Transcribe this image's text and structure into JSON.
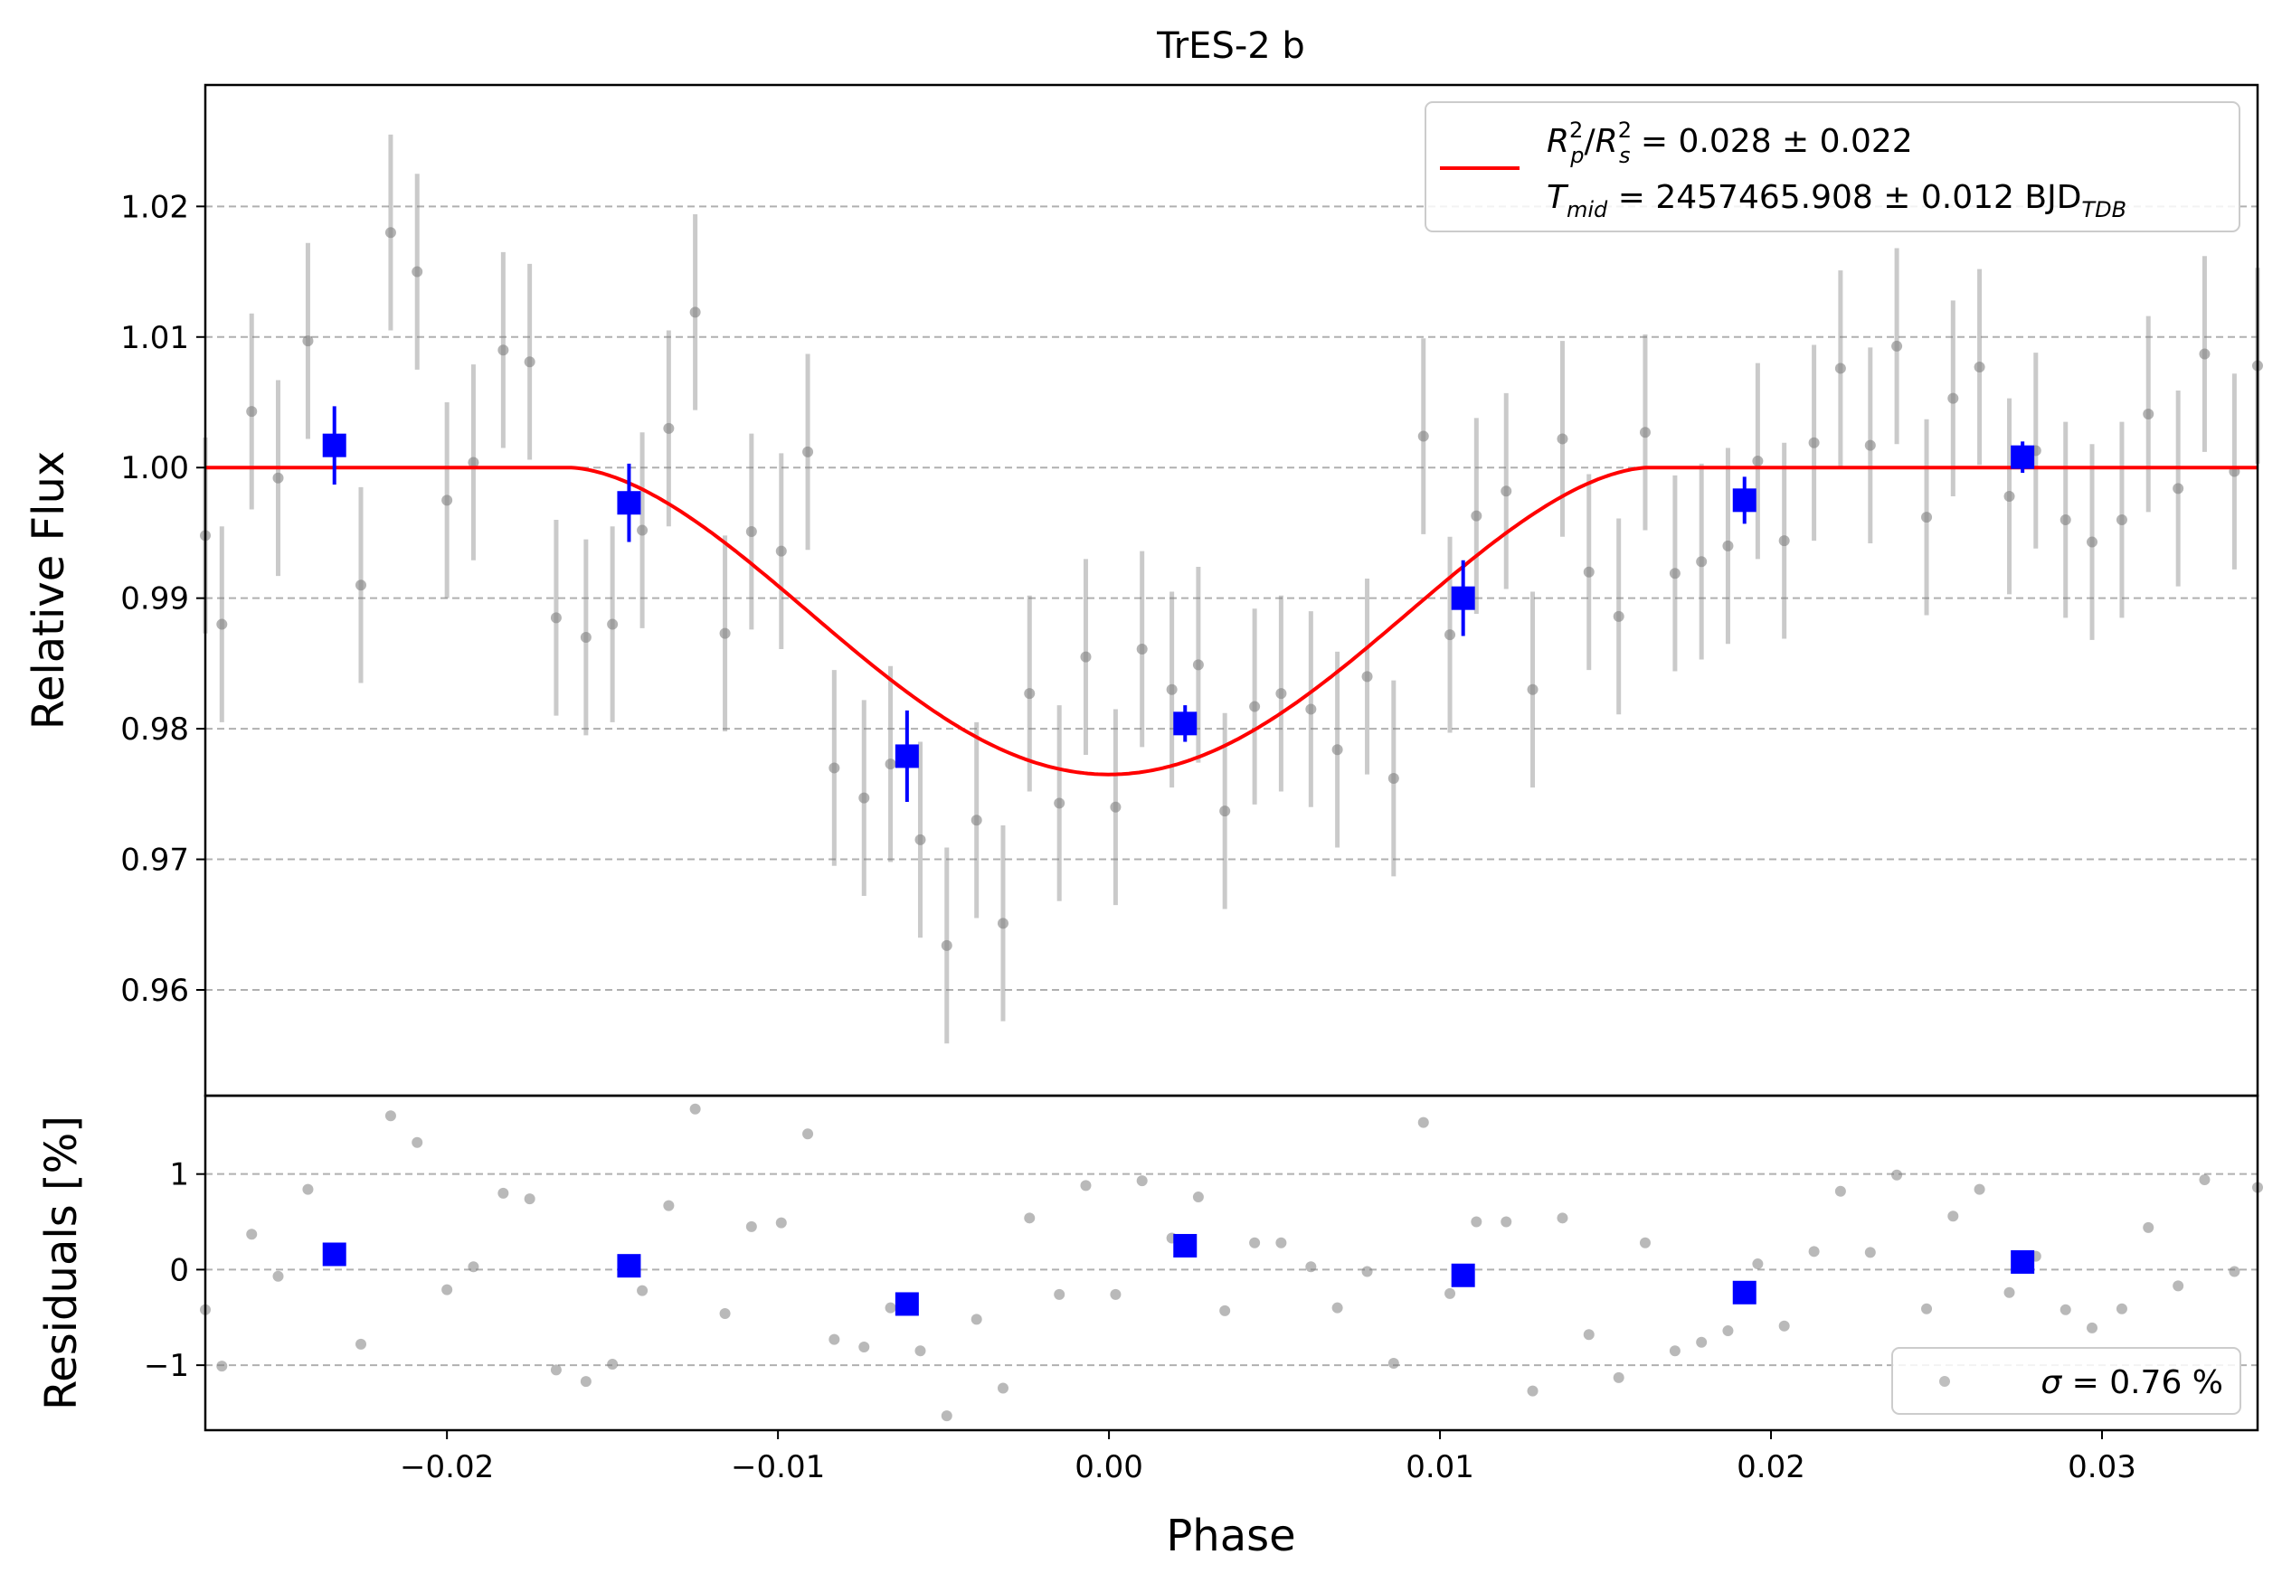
{
  "chart_data": [
    {
      "type": "scatter",
      "title": "TrES-2 b",
      "xlabel": "",
      "ylabel": "Relative Flux",
      "xlim": [
        -0.0273,
        0.0347
      ],
      "ylim": [
        0.9519,
        1.0293
      ],
      "grid": "y-dashed",
      "yticks": [
        0.96,
        0.97,
        0.98,
        0.99,
        1.0,
        1.01,
        1.02
      ],
      "ytick_labels": [
        "0.96",
        "0.97",
        "0.98",
        "0.99",
        "1.00",
        "1.01",
        "1.02"
      ],
      "legend": {
        "placement": "top-right",
        "line1": {
          "sym1": "R",
          "sub1": "p",
          "sup1": "2",
          "slash": "/",
          "sym2": "R",
          "sub2": "s",
          "sup2": "2",
          "value": " = 0.028 ± 0.022"
        },
        "line2": {
          "sym": "T",
          "sub": "mid",
          "value": " = 2457465.908 ± 0.012 BJD",
          "unitsub": "TDB"
        }
      },
      "model": {
        "color": "#ff0000",
        "baseline": 1.0,
        "depth": 0.0235,
        "contact_half_width": 0.0163,
        "x_range": [
          -0.0273,
          0.0347
        ]
      },
      "raw_points": {
        "color": "#808080",
        "x": [
          -0.0273,
          -0.0268,
          -0.0259,
          -0.0251,
          -0.0242,
          -0.0226,
          -0.0217,
          -0.0209,
          -0.02,
          -0.0192,
          -0.0183,
          -0.0175,
          -0.0167,
          -0.0158,
          -0.015,
          -0.0141,
          -0.0133,
          -0.0125,
          -0.0116,
          -0.0108,
          -0.0099,
          -0.0091,
          -0.0083,
          -0.0074,
          -0.0066,
          -0.0057,
          -0.0049,
          -0.004,
          -0.0032,
          -0.0024,
          -0.0015,
          -0.0007,
          0.0002,
          0.001,
          0.0019,
          0.0027,
          0.0035,
          0.0044,
          0.0052,
          0.0061,
          0.0069,
          0.0078,
          0.0086,
          0.0095,
          0.0103,
          0.0111,
          0.012,
          0.0128,
          0.0137,
          0.0145,
          0.0154,
          0.0162,
          0.0171,
          0.0179,
          0.0187,
          0.0196,
          0.0204,
          0.0213,
          0.0221,
          0.023,
          0.0238,
          0.0247,
          0.0255,
          0.0263,
          0.0272,
          0.028,
          0.0289,
          0.0297,
          0.0306,
          0.0314,
          0.0323,
          0.0331,
          0.034,
          0.0347
        ],
        "y": [
          0.9948,
          0.988,
          1.0043,
          0.9992,
          1.0097,
          0.991,
          1.018,
          1.015,
          0.9975,
          1.0004,
          1.009,
          1.0081,
          0.9885,
          0.987,
          0.988,
          0.9952,
          1.003,
          1.0119,
          0.9873,
          0.9951,
          0.9936,
          1.0012,
          0.977,
          0.9747,
          0.9773,
          0.9715,
          0.9634,
          0.973,
          0.9651,
          0.9827,
          0.9743,
          0.9855,
          0.974,
          0.9861,
          0.983,
          0.9849,
          0.9737,
          0.9817,
          0.9827,
          0.9815,
          0.9784,
          0.984,
          0.9762,
          1.0024,
          0.9872,
          0.9963,
          0.9982,
          0.983,
          1.0022,
          0.992,
          0.9886,
          1.0027,
          0.9919,
          0.9928,
          0.994,
          1.0005,
          0.9944,
          1.0019,
          1.0076,
          1.0017,
          1.0093,
          0.9962,
          1.0053,
          1.0077,
          0.9978,
          1.0013,
          0.996,
          0.9943,
          0.996,
          1.0041,
          0.9984,
          1.0087,
          0.9997,
          1.0078
        ],
        "yerr": 0.0075
      },
      "binned_points": {
        "color": "#0000ff",
        "x": [
          -0.0234,
          -0.0145,
          -0.0061,
          0.0023,
          0.0107,
          0.0192,
          0.0276
        ],
        "y": [
          1.0017,
          0.9973,
          0.9779,
          0.9804,
          0.99,
          0.9975,
          1.0008
        ],
        "yerr": [
          0.003,
          0.003,
          0.0035,
          0.0014,
          0.0029,
          0.0018,
          0.0012
        ]
      }
    },
    {
      "type": "scatter",
      "title": "",
      "xlabel": "Phase",
      "ylabel": "Residuals [%]",
      "xlim": [
        -0.0273,
        0.0347
      ],
      "ylim": [
        -1.68,
        1.82
      ],
      "grid": "y-dashed",
      "xticks": [
        -0.02,
        -0.01,
        0.0,
        0.01,
        0.02,
        0.03
      ],
      "xtick_labels": [
        "−0.02",
        "−0.01",
        "0.00",
        "0.01",
        "0.02",
        "0.03"
      ],
      "yticks": [
        -1,
        0,
        1
      ],
      "ytick_labels": [
        "−1",
        "0",
        "1"
      ],
      "legend": {
        "placement": "bottom-right",
        "sym": "σ",
        "value": " = 0.76 %"
      },
      "raw_points": {
        "color": "#808080",
        "x": [
          -0.0273,
          -0.0268,
          -0.0259,
          -0.0251,
          -0.0242,
          -0.0226,
          -0.0217,
          -0.0209,
          -0.02,
          -0.0192,
          -0.0183,
          -0.0175,
          -0.0167,
          -0.0158,
          -0.015,
          -0.0141,
          -0.0133,
          -0.0125,
          -0.0116,
          -0.0108,
          -0.0099,
          -0.0091,
          -0.0083,
          -0.0074,
          -0.0066,
          -0.0057,
          -0.0049,
          -0.004,
          -0.0032,
          -0.0024,
          -0.0015,
          -0.0007,
          0.0002,
          0.001,
          0.0019,
          0.0027,
          0.0035,
          0.0044,
          0.0052,
          0.0061,
          0.0069,
          0.0078,
          0.0086,
          0.0095,
          0.0103,
          0.0111,
          0.012,
          0.0128,
          0.0137,
          0.0145,
          0.0154,
          0.0162,
          0.0171,
          0.0179,
          0.0187,
          0.0196,
          0.0204,
          0.0213,
          0.0221,
          0.023,
          0.0238,
          0.0247,
          0.0255,
          0.0263,
          0.0272,
          0.028,
          0.0289,
          0.0297,
          0.0306,
          0.0314,
          0.0323,
          0.0331,
          0.034,
          0.0347
        ],
        "y": [
          -0.42,
          -1.01,
          0.37,
          -0.07,
          0.84,
          -0.78,
          1.61,
          1.33,
          -0.21,
          0.03,
          0.8,
          0.74,
          -1.05,
          -1.17,
          -0.99,
          -0.22,
          0.67,
          1.68,
          -0.46,
          0.45,
          0.49,
          1.42,
          -0.73,
          -0.81,
          -0.4,
          -0.85,
          -1.53,
          -0.52,
          -1.24,
          0.54,
          -0.26,
          0.88,
          -0.26,
          0.93,
          0.33,
          0.76,
          -0.43,
          0.28,
          0.28,
          0.03,
          -0.4,
          -0.02,
          -0.98,
          1.54,
          -0.25,
          0.5,
          0.5,
          -1.27,
          0.54,
          -0.68,
          -1.13,
          0.28,
          -0.85,
          -0.76,
          -0.64,
          0.06,
          -0.59,
          0.19,
          0.82,
          0.18,
          0.99,
          -0.41,
          0.56,
          0.84,
          -0.24,
          0.14,
          -0.42,
          -0.61,
          -0.41,
          0.44,
          -0.17,
          0.94,
          -0.02,
          0.86
        ]
      },
      "binned_points": {
        "color": "#0000ff",
        "x": [
          -0.0234,
          -0.0145,
          -0.0061,
          0.0023,
          0.0107,
          0.0192,
          0.0276
        ],
        "y": [
          0.16,
          0.04,
          -0.36,
          0.25,
          -0.06,
          -0.24,
          0.08
        ]
      }
    }
  ]
}
